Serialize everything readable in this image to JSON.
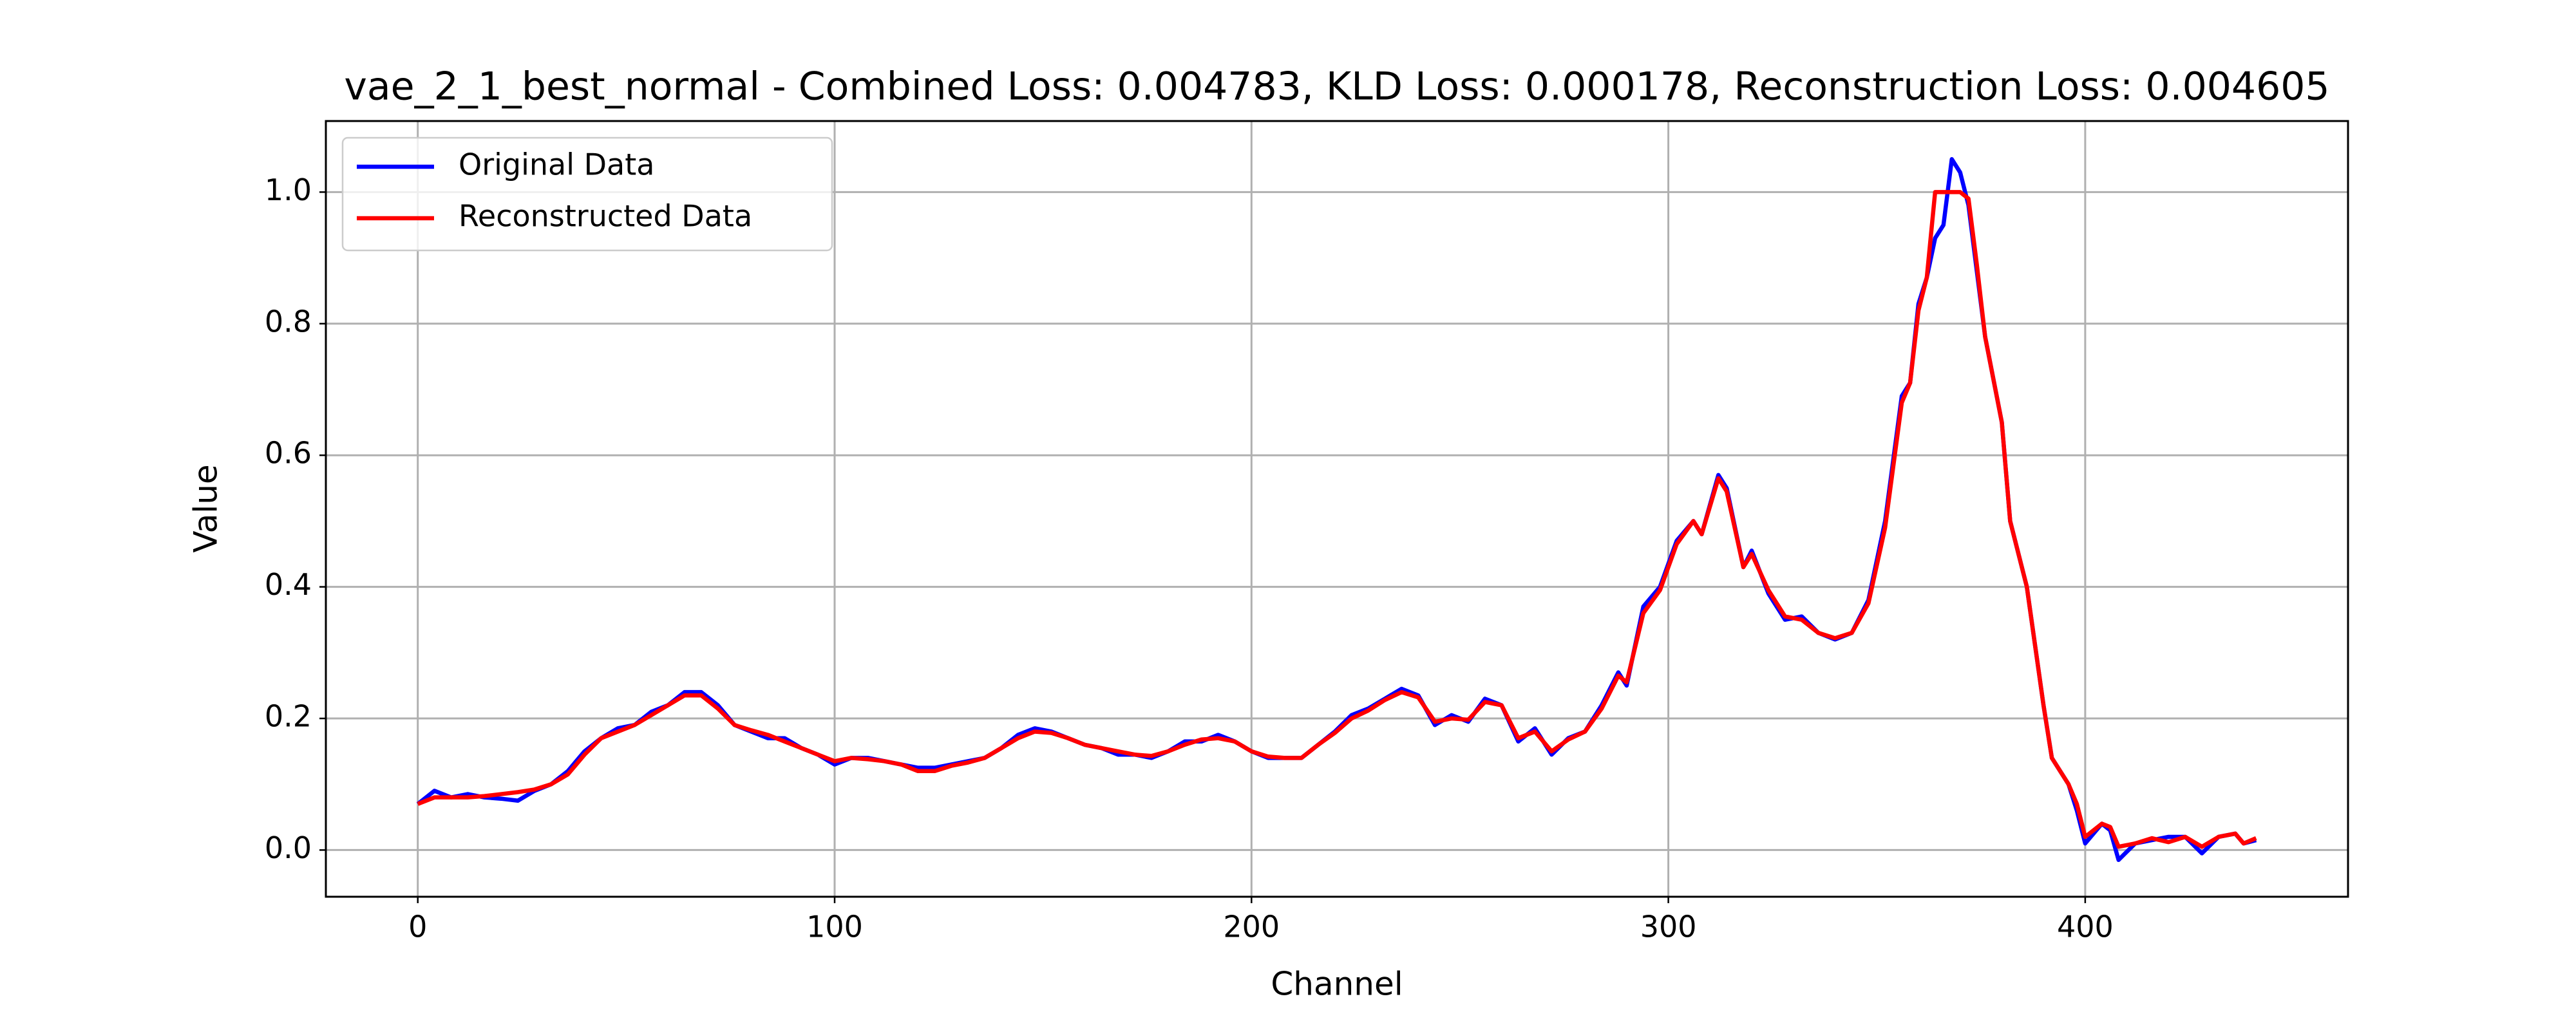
{
  "chart_data": {
    "type": "line",
    "title": "vae_2_1_best_normal - Combined Loss: 0.004783, KLD Loss: 0.000178, Reconstruction Loss: 0.004605",
    "x_label": "Channel",
    "y_label": "Value",
    "x": [
      0,
      4,
      8,
      12,
      16,
      20,
      24,
      28,
      32,
      36,
      40,
      44,
      48,
      52,
      56,
      60,
      64,
      68,
      72,
      76,
      80,
      84,
      88,
      92,
      96,
      100,
      104,
      108,
      112,
      116,
      120,
      124,
      128,
      132,
      136,
      140,
      144,
      148,
      152,
      156,
      160,
      164,
      168,
      172,
      176,
      180,
      184,
      188,
      192,
      196,
      200,
      204,
      208,
      212,
      216,
      220,
      224,
      228,
      232,
      236,
      240,
      244,
      248,
      252,
      256,
      260,
      264,
      268,
      272,
      276,
      280,
      284,
      288,
      290,
      294,
      298,
      302,
      306,
      308,
      312,
      314,
      318,
      320,
      324,
      328,
      332,
      336,
      340,
      344,
      348,
      352,
      356,
      358,
      360,
      362,
      364,
      366,
      368,
      370,
      372,
      374,
      376,
      380,
      382,
      386,
      390,
      392,
      396,
      398,
      400,
      404,
      406,
      408,
      412,
      416,
      420,
      424,
      428,
      432,
      436,
      438,
      441
    ],
    "series": [
      {
        "name": "Original Data",
        "color": "#0000ff",
        "values": [
          0.07,
          0.09,
          0.08,
          0.085,
          0.08,
          0.078,
          0.075,
          0.09,
          0.1,
          0.12,
          0.15,
          0.17,
          0.185,
          0.19,
          0.21,
          0.22,
          0.24,
          0.24,
          0.22,
          0.19,
          0.18,
          0.17,
          0.17,
          0.155,
          0.145,
          0.13,
          0.14,
          0.14,
          0.135,
          0.13,
          0.125,
          0.125,
          0.13,
          0.135,
          0.14,
          0.155,
          0.175,
          0.185,
          0.18,
          0.17,
          0.16,
          0.155,
          0.145,
          0.145,
          0.14,
          0.15,
          0.165,
          0.165,
          0.175,
          0.165,
          0.15,
          0.14,
          0.14,
          0.14,
          0.16,
          0.18,
          0.205,
          0.215,
          0.23,
          0.245,
          0.235,
          0.19,
          0.205,
          0.195,
          0.23,
          0.22,
          0.165,
          0.185,
          0.145,
          0.17,
          0.18,
          0.22,
          0.27,
          0.25,
          0.37,
          0.4,
          0.47,
          0.5,
          0.48,
          0.57,
          0.55,
          0.43,
          0.455,
          0.39,
          0.35,
          0.355,
          0.33,
          0.32,
          0.33,
          0.38,
          0.5,
          0.69,
          0.71,
          0.83,
          0.87,
          0.93,
          0.95,
          1.05,
          1.03,
          0.98,
          0.88,
          0.78,
          0.65,
          0.5,
          0.4,
          0.22,
          0.14,
          0.1,
          0.06,
          0.01,
          0.04,
          0.03,
          -0.015,
          0.01,
          0.015,
          0.02,
          0.02,
          -0.005,
          0.02,
          0.025,
          0.01,
          0.015
        ]
      },
      {
        "name": "Reconstructed Data",
        "color": "#ff0000",
        "values": [
          0.07,
          0.08,
          0.08,
          0.08,
          0.082,
          0.085,
          0.088,
          0.092,
          0.1,
          0.115,
          0.145,
          0.17,
          0.18,
          0.19,
          0.205,
          0.22,
          0.235,
          0.235,
          0.215,
          0.19,
          0.182,
          0.175,
          0.165,
          0.155,
          0.145,
          0.135,
          0.14,
          0.138,
          0.135,
          0.13,
          0.12,
          0.12,
          0.128,
          0.133,
          0.14,
          0.155,
          0.17,
          0.18,
          0.178,
          0.17,
          0.16,
          0.155,
          0.15,
          0.145,
          0.143,
          0.15,
          0.16,
          0.168,
          0.17,
          0.165,
          0.15,
          0.142,
          0.14,
          0.14,
          0.16,
          0.178,
          0.2,
          0.212,
          0.228,
          0.24,
          0.232,
          0.195,
          0.2,
          0.198,
          0.225,
          0.22,
          0.17,
          0.18,
          0.15,
          0.168,
          0.18,
          0.215,
          0.265,
          0.255,
          0.36,
          0.395,
          0.465,
          0.5,
          0.48,
          0.565,
          0.545,
          0.43,
          0.45,
          0.395,
          0.355,
          0.35,
          0.33,
          0.322,
          0.33,
          0.375,
          0.49,
          0.68,
          0.71,
          0.82,
          0.87,
          1.0,
          1.0,
          1.0,
          1.0,
          0.99,
          0.89,
          0.78,
          0.65,
          0.5,
          0.4,
          0.22,
          0.14,
          0.1,
          0.07,
          0.02,
          0.04,
          0.035,
          0.005,
          0.01,
          0.018,
          0.012,
          0.02,
          0.005,
          0.02,
          0.025,
          0.01,
          0.018
        ]
      }
    ],
    "xlim": [
      -22.05,
      463.05
    ],
    "ylim": [
      -0.071,
      1.108
    ],
    "xticks": [
      0,
      100,
      200,
      300,
      400
    ],
    "yticks": [
      {
        "value": 0,
        "label": "0.0"
      },
      0.2,
      0.4,
      0.6,
      0.8,
      {
        "value": 1,
        "label": "1.0"
      }
    ],
    "grid": true,
    "legend": "upper left"
  }
}
